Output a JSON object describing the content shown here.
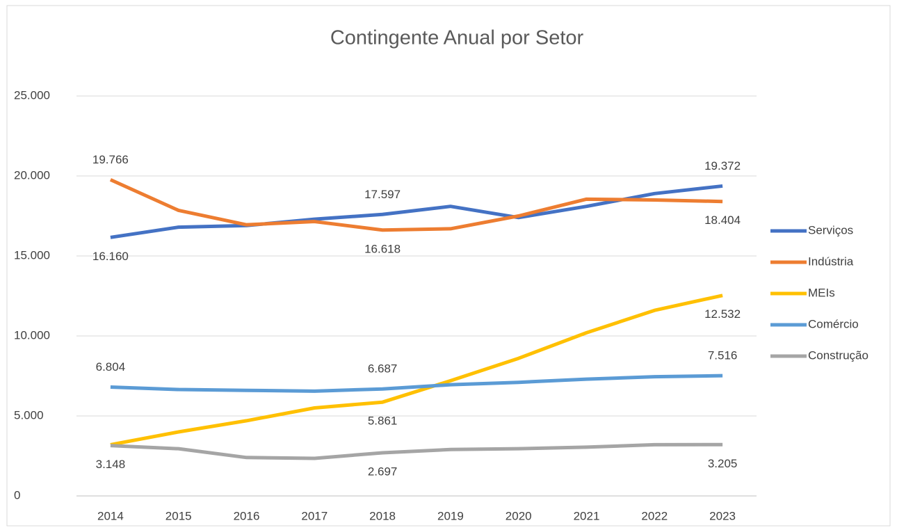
{
  "chart_data": {
    "type": "line",
    "title": "Contingente Anual por Setor",
    "categories": [
      "2014",
      "2015",
      "2016",
      "2017",
      "2018",
      "2019",
      "2020",
      "2021",
      "2022",
      "2023"
    ],
    "series": [
      {
        "name": "Serviços",
        "color": "#4472c4",
        "values": [
          16160,
          16800,
          16900,
          17300,
          17597,
          18100,
          17400,
          18100,
          18900,
          19372
        ],
        "value_labels": [
          "16.160",
          null,
          null,
          null,
          "17.597",
          null,
          null,
          null,
          null,
          "19.372"
        ]
      },
      {
        "name": "Indústria",
        "color": "#ed7d31",
        "values": [
          19766,
          17850,
          16950,
          17150,
          16618,
          16700,
          17500,
          18550,
          18500,
          18404
        ],
        "value_labels": [
          "19.766",
          null,
          null,
          null,
          "16.618",
          null,
          null,
          null,
          null,
          "18.404"
        ]
      },
      {
        "name": "MEIs",
        "color": "#ffc000",
        "values": [
          3200,
          4000,
          4700,
          5500,
          5861,
          7200,
          8600,
          10200,
          11600,
          12532
        ],
        "value_labels": [
          null,
          null,
          null,
          null,
          "5.861",
          null,
          null,
          null,
          null,
          "12.532"
        ]
      },
      {
        "name": "Comércio",
        "color": "#5b9bd5",
        "values": [
          6804,
          6650,
          6600,
          6550,
          6687,
          6950,
          7100,
          7300,
          7450,
          7516
        ],
        "value_labels": [
          "6.804",
          null,
          null,
          null,
          "6.687",
          null,
          null,
          null,
          null,
          "7.516"
        ]
      },
      {
        "name": "Construção",
        "color": "#a5a5a5",
        "values": [
          3148,
          2950,
          2400,
          2350,
          2697,
          2900,
          2950,
          3050,
          3200,
          3205
        ],
        "value_labels": [
          "3.148",
          null,
          null,
          null,
          "2.697",
          null,
          null,
          null,
          null,
          "3.205"
        ]
      }
    ],
    "ylim": [
      0,
      25000
    ],
    "yticks": [
      0,
      {
        "value": 5000,
        "label": "5.000"
      },
      {
        "value": 10000,
        "label": "10.000"
      },
      {
        "value": 15000,
        "label": "15.000"
      },
      {
        "value": 20000,
        "label": "20.000"
      },
      {
        "value": 25000,
        "label": "25.000"
      }
    ],
    "grid": true,
    "legend": "right"
  }
}
